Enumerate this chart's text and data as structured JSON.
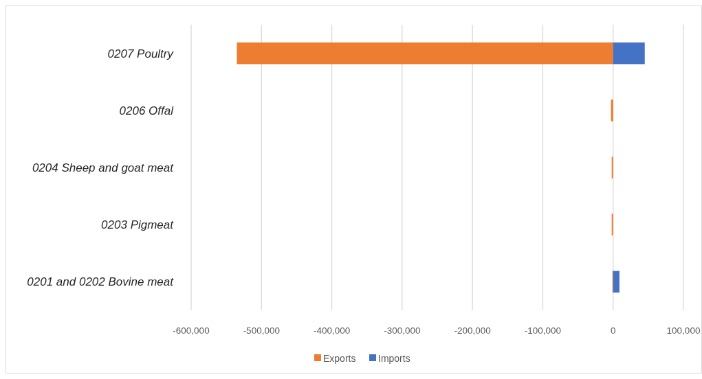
{
  "chart_data": {
    "type": "bar",
    "orientation": "horizontal",
    "categories": [
      "0207 Poultry",
      "0206 Offal",
      "0204 Sheep and goat meat",
      "0203 Pigmeat",
      "0201 and 0202 Bovine meat"
    ],
    "series": [
      {
        "name": "Exports",
        "color": "#ed7d31",
        "values": [
          -535000,
          -3000,
          -2000,
          -2000,
          -1000
        ]
      },
      {
        "name": "Imports",
        "color": "#4472c4",
        "values": [
          45000,
          0,
          0,
          0,
          9000
        ]
      }
    ],
    "xlim": [
      -600000,
      100000
    ],
    "xticks": [
      {
        "value": -600000,
        "label": "-600,000"
      },
      {
        "value": -500000,
        "label": "-500,000"
      },
      {
        "value": -400000,
        "label": "-400,000"
      },
      {
        "value": -300000,
        "label": "-300,000"
      },
      {
        "value": -200000,
        "label": "-200,000"
      },
      {
        "value": -100000,
        "label": "-100,000"
      },
      0,
      {
        "value": 100000,
        "label": "100,000"
      }
    ],
    "grid": "x",
    "legend": "bottom"
  }
}
